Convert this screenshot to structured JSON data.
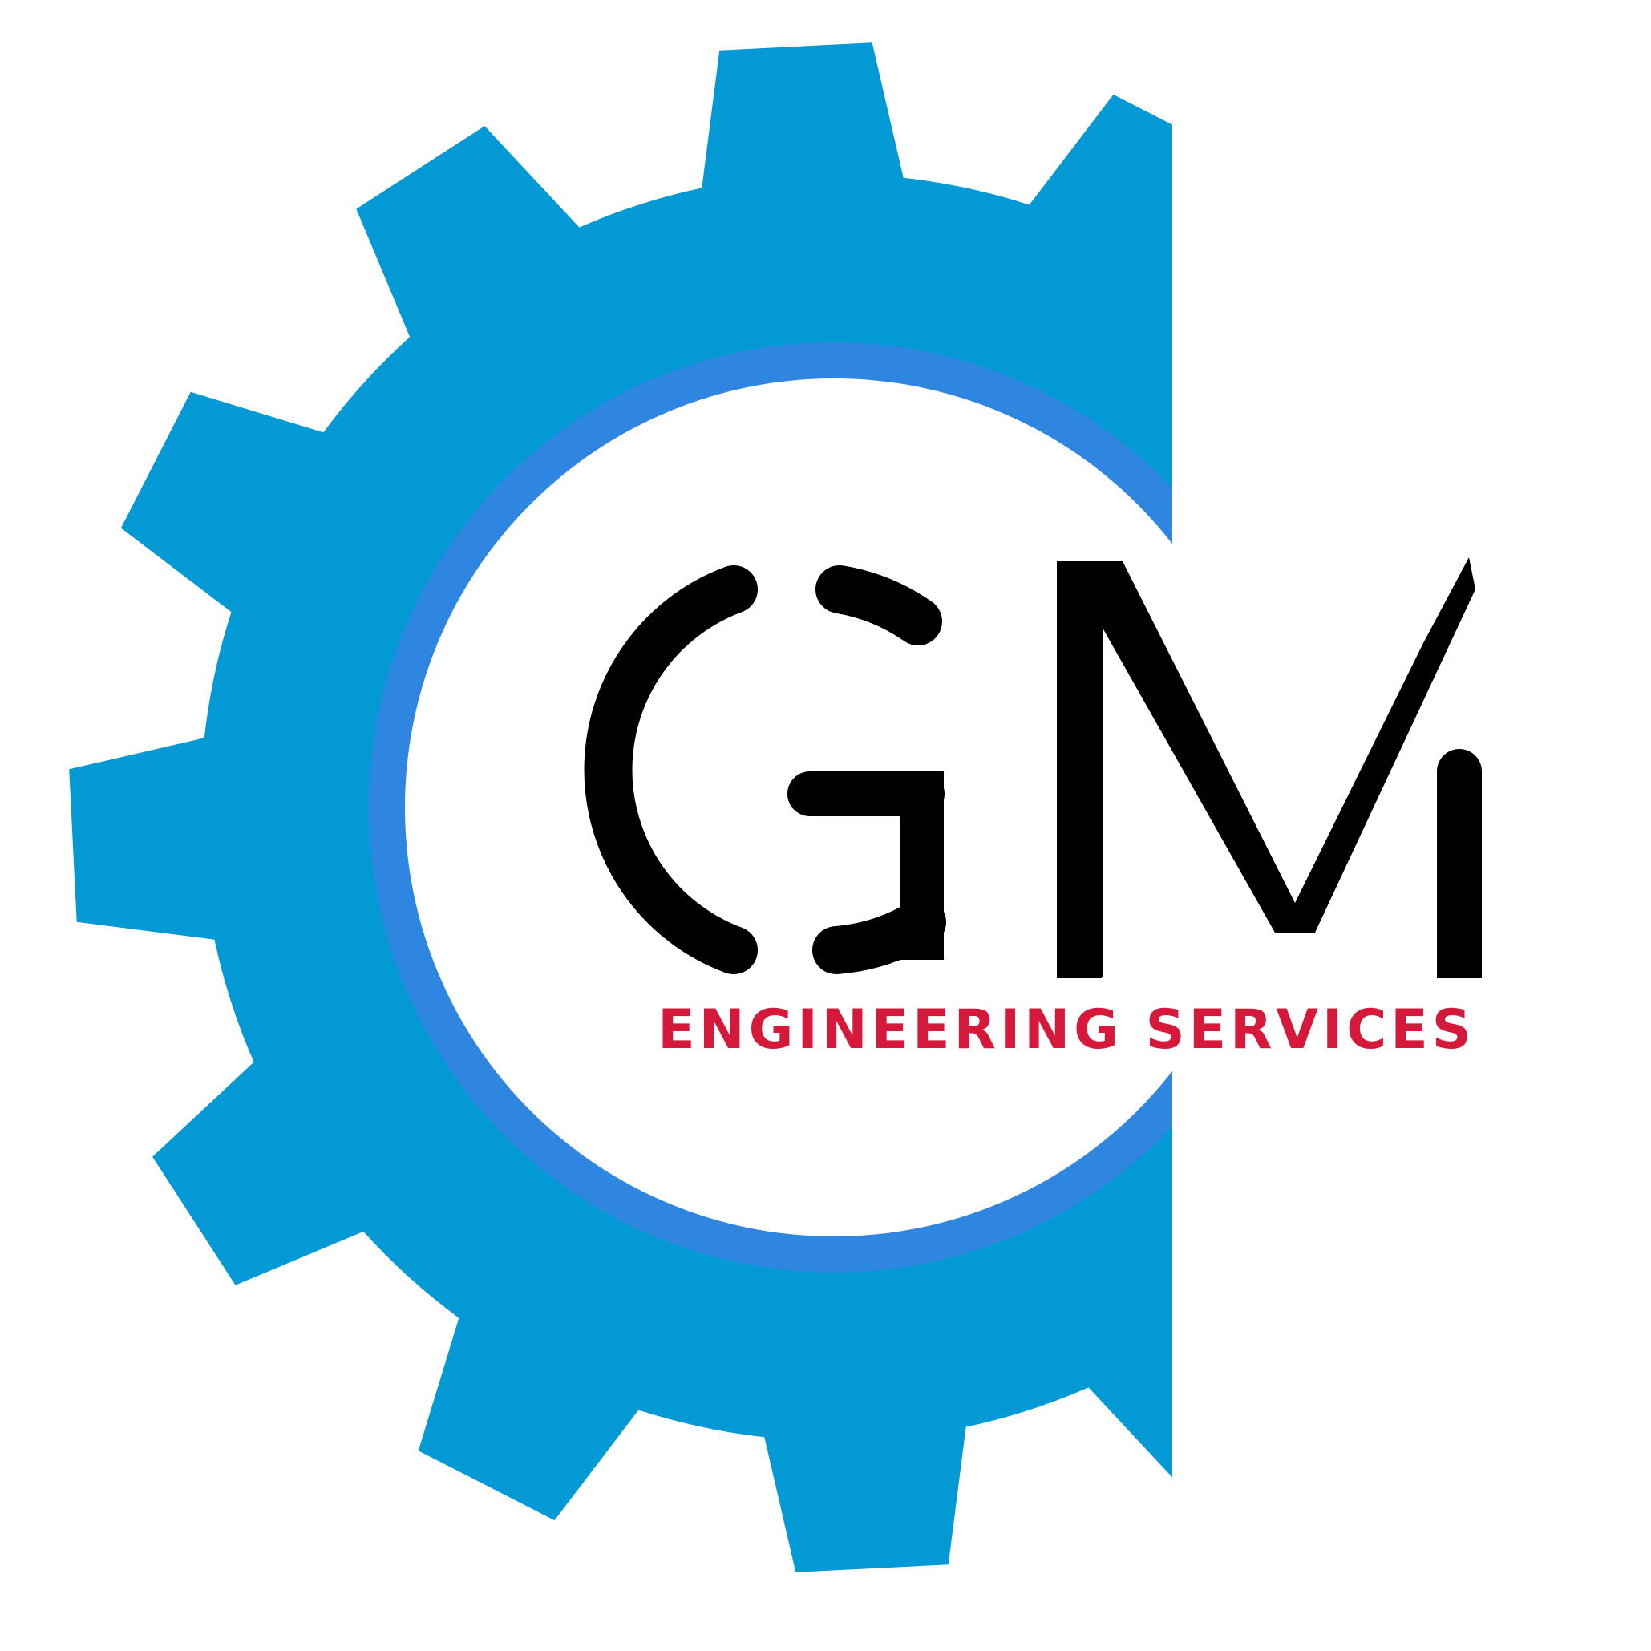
{
  "logo": {
    "monogram": "GM",
    "tagline": "ENGINEERING SERVICES"
  },
  "colors": {
    "gear": "#0399d5",
    "ring": "#2f86e0",
    "inner": "#ffffff",
    "monogram": "#000000",
    "tagline": "#d6193a",
    "background": "#ffffff"
  },
  "icons": [
    "gear-icon",
    "ring-icon",
    "gm-monogram-icon"
  ]
}
